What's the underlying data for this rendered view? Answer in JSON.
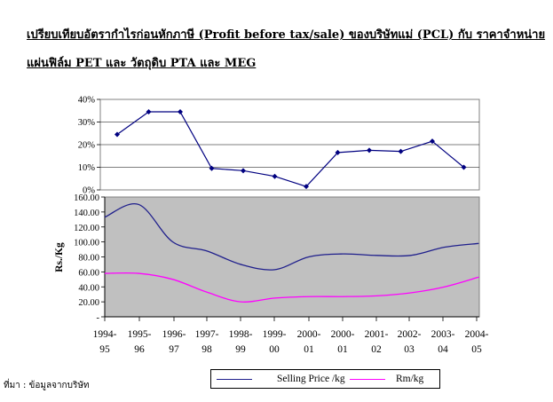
{
  "title_line1": "เปรียบเทียบอัตรากำไรก่อนหักภาษี (Profit before tax/sale) ของบริษัทแม่ (PCL) กับ ราคาจำหน่าย",
  "title_line2": "แผ่นฟิล์ม PET และ วัตถุดิบ PTA และ MEG",
  "source_note": "ที่มา : ข้อมูลจากบริษัท",
  "colors": {
    "selling_price": "#1f1f8c",
    "rm": "#ff00ff",
    "plot_bg": "#c0c0c0",
    "margin_line": "#000080"
  },
  "chart_data": [
    {
      "type": "line",
      "title": "",
      "categories": [
        "1994-95",
        "1995-96",
        "1996-97",
        "1997-98",
        "1998-99",
        "1999-00",
        "2000-01",
        "2000-01",
        "2001-02",
        "2002-03",
        "2003-04",
        "2004-05"
      ],
      "y_ticks": [
        "40%",
        "30%",
        "20%",
        "10%",
        "0%"
      ],
      "ylim": [
        0,
        40
      ],
      "series": [
        {
          "values": [
            24.5,
            34.5,
            34.5,
            9.5,
            8.5,
            6,
            1.5,
            16.5,
            17.5,
            17,
            21.5,
            10
          ]
        }
      ],
      "grid": true
    },
    {
      "type": "line",
      "title": "",
      "ylabel": "Rs./Kg",
      "categories_top": [
        "1994-",
        "1995-",
        "1996-",
        "1997-",
        "1998-",
        "1999-",
        "2000-",
        "2000-",
        "2001-",
        "2002-",
        "2003-",
        "2004-"
      ],
      "categories_bottom": [
        "95",
        "96",
        "97",
        "98",
        "99",
        "00",
        "01",
        "01",
        "02",
        "03",
        "04",
        "05"
      ],
      "y_ticks": [
        "160.00",
        "140.00",
        "120.00",
        "100.00",
        "80.00",
        "60.00",
        "40.00",
        "20.00",
        "-"
      ],
      "ylim": [
        0,
        160
      ],
      "legend_position": "bottom",
      "series": [
        {
          "name": "Selling Price /kg",
          "values": [
            133,
            150,
            100,
            88,
            70,
            63,
            80,
            84,
            82,
            82,
            93,
            98
          ]
        },
        {
          "name": "Rm/kg",
          "values": [
            58,
            58,
            50,
            33,
            20,
            25,
            27,
            27,
            28,
            32,
            40,
            53
          ]
        }
      ],
      "grid": false
    }
  ]
}
